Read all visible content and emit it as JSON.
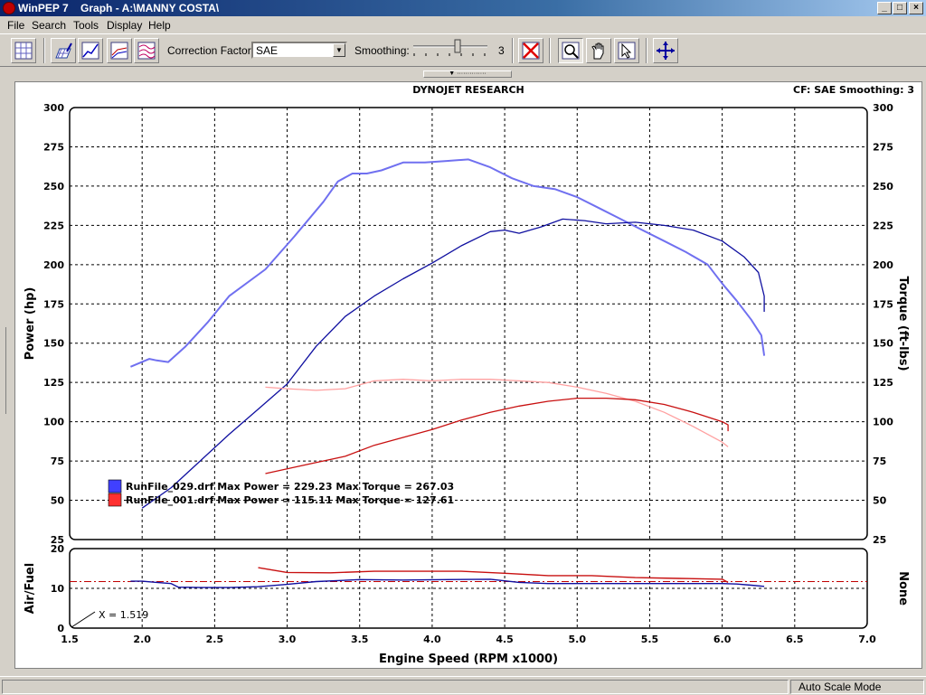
{
  "window": {
    "title": "WinPEP 7    Graph - A:\\MANNY COSTA\\",
    "minimize": "_",
    "restore": "□",
    "close": "×"
  },
  "menu": {
    "items": [
      "File",
      "Search",
      "Tools",
      "Display",
      "Help"
    ]
  },
  "toolbar": {
    "correction_factor_label": "Correction Factor:",
    "correction_factor_value": "SAE",
    "smoothing_label": "Smoothing:",
    "smoothing_value": "3",
    "smoothing_level": 3,
    "icons": [
      "grid-view-icon",
      "3d-graph-icon",
      "line-graph-icon",
      "multi-graph-icon",
      "overlay-graph-icon",
      "clear-graph-icon",
      "zoom-icon",
      "hand-pan-icon",
      "select-icon",
      "axis-move-icon"
    ]
  },
  "status": {
    "mode": "Auto Scale Mode"
  },
  "chart_data": [
    {
      "type": "line",
      "title": "DYNOJET RESEARCH",
      "header_right": "CF: SAE  Smoothing: 3",
      "xlabel": "",
      "ylabel": "Power (hp)",
      "y2label": "Torque (ft-lbs)",
      "xlim": [
        1.5,
        7.0
      ],
      "ylim": [
        25,
        300
      ],
      "x_ticks": [
        "1.5",
        "2.0",
        "2.5",
        "3.0",
        "3.5",
        "4.0",
        "4.5",
        "5.0",
        "5.5",
        "6.0",
        "6.5",
        "7.0"
      ],
      "y_ticks": [
        "25",
        "50",
        "75",
        "100",
        "125",
        "150",
        "175",
        "200",
        "225",
        "250",
        "275",
        "300"
      ],
      "y2_ticks": [
        "25",
        "50",
        "75",
        "100",
        "125",
        "150",
        "175",
        "200",
        "225",
        "250",
        "275",
        "300"
      ],
      "grid": true,
      "legend": [
        {
          "text": "RunFile_029.drf Max Power = 229.23 Max Torque = 267.03",
          "color": "#4040ff"
        },
        {
          "text": "RunFile_001.drf Max Power = 115.11 Max Torque = 127.61",
          "color": "#ff3030"
        }
      ],
      "series": [
        {
          "run": "RunFile_029.drf",
          "measure": "torque",
          "color": "#7070f0",
          "x": [
            1.92,
            2.05,
            2.1,
            2.18,
            2.3,
            2.45,
            2.6,
            2.85,
            3.05,
            3.25,
            3.35,
            3.45,
            3.55,
            3.65,
            3.8,
            3.95,
            4.1,
            4.25,
            4.4,
            4.55,
            4.7,
            4.85,
            5.0,
            5.15,
            5.3,
            5.45,
            5.6,
            5.75,
            5.9,
            6.0,
            6.1,
            6.2,
            6.27,
            6.29
          ],
          "y": [
            135,
            140,
            139,
            138,
            148,
            163,
            180,
            197,
            218,
            240,
            253,
            258,
            258,
            260,
            265,
            265,
            266,
            267,
            262,
            255,
            250,
            248,
            243,
            236,
            229,
            222,
            215,
            208,
            200,
            188,
            177,
            165,
            155,
            142
          ]
        },
        {
          "run": "RunFile_029.drf",
          "measure": "power",
          "color": "#1010a0",
          "x": [
            2.0,
            2.2,
            2.4,
            2.6,
            2.8,
            3.0,
            3.2,
            3.4,
            3.6,
            3.8,
            4.0,
            4.2,
            4.4,
            4.5,
            4.6,
            4.75,
            4.9,
            5.05,
            5.2,
            5.4,
            5.6,
            5.8,
            6.0,
            6.15,
            6.25,
            6.29,
            6.29
          ],
          "y": [
            45,
            58,
            75,
            92,
            108,
            124,
            148,
            167,
            180,
            191,
            201,
            212,
            221,
            222,
            220,
            224,
            229,
            228,
            226,
            227,
            225,
            222,
            215,
            205,
            195,
            180,
            170
          ]
        },
        {
          "run": "RunFile_001.drf",
          "measure": "torque",
          "color": "#ffa0a0",
          "x": [
            2.85,
            3.0,
            3.2,
            3.4,
            3.6,
            3.8,
            4.0,
            4.2,
            4.4,
            4.6,
            4.8,
            5.0,
            5.2,
            5.4,
            5.6,
            5.8,
            6.0,
            6.04
          ],
          "y": [
            122,
            121,
            120,
            121,
            126,
            127,
            126,
            127,
            127,
            126,
            125,
            122,
            118,
            113,
            106,
            97,
            87,
            84
          ]
        },
        {
          "run": "RunFile_001.drf",
          "measure": "power",
          "color": "#c81010",
          "x": [
            2.85,
            3.0,
            3.2,
            3.4,
            3.6,
            3.8,
            4.0,
            4.2,
            4.4,
            4.6,
            4.8,
            5.0,
            5.2,
            5.4,
            5.6,
            5.8,
            6.0,
            6.04,
            6.04
          ],
          "y": [
            67,
            70,
            74,
            78,
            85,
            90,
            95,
            101,
            106,
            110,
            113,
            115,
            115,
            114,
            111,
            106,
            100,
            98,
            94
          ]
        }
      ]
    },
    {
      "type": "line",
      "title": "",
      "xlabel": "Engine Speed (RPM x1000)",
      "ylabel": "Air/Fuel",
      "y2label": "None",
      "xlim": [
        1.5,
        7.0
      ],
      "ylim": [
        0,
        20
      ],
      "y_ticks": [
        "0",
        "10",
        "20"
      ],
      "grid": true,
      "reference_line": 11.7,
      "cursor_readout": "X = 1.519",
      "series": [
        {
          "run": "RunFile_029.drf",
          "color": "#1010a0",
          "x": [
            1.92,
            2.0,
            2.1,
            2.2,
            2.25,
            2.4,
            2.6,
            2.8,
            3.0,
            3.2,
            3.5,
            3.8,
            4.1,
            4.4,
            4.6,
            4.8,
            5.0,
            5.2,
            5.5,
            5.8,
            6.0,
            6.1,
            6.2,
            6.29
          ],
          "y": [
            11.8,
            11.8,
            11.5,
            11.2,
            10.3,
            10.2,
            10.2,
            10.4,
            11.0,
            11.7,
            12.2,
            12.1,
            12.2,
            12.3,
            11.5,
            11.2,
            11.2,
            11.2,
            11.2,
            11.2,
            11.2,
            11.1,
            10.8,
            10.5
          ]
        },
        {
          "run": "RunFile_001.drf",
          "color": "#c81010",
          "x": [
            2.8,
            3.0,
            3.3,
            3.6,
            3.9,
            4.2,
            4.5,
            4.8,
            5.1,
            5.4,
            5.7,
            6.0,
            6.04
          ],
          "y": [
            15.2,
            14.0,
            13.9,
            14.3,
            14.3,
            14.3,
            13.8,
            13.2,
            13.2,
            12.7,
            12.5,
            12.3,
            11.5
          ]
        }
      ]
    }
  ]
}
